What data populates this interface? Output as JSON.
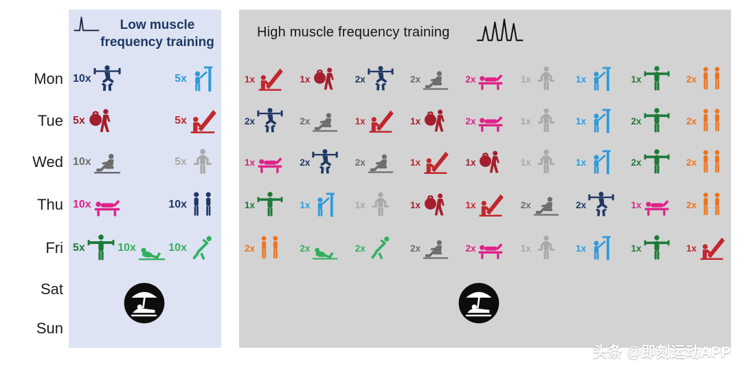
{
  "days": [
    "Mon",
    "Tue",
    "Wed",
    "Thu",
    "Fri",
    "Sat",
    "Sun"
  ],
  "watermark": "头条 @即刻运动APP",
  "palette": {
    "navy": "#1f3864",
    "lightblue": "#2f9cd9",
    "darkred": "#a51e2d",
    "red": "#c1272d",
    "gray": "#6d6d6d",
    "lightgray": "#a9a9a9",
    "pink": "#e0218a",
    "green": "#1d7a3a",
    "midgreen": "#32b05f",
    "orange": "#ed7420",
    "low_title": "#1f3864",
    "high_title": "#161616",
    "low_panel_bg": "#dde3f3",
    "high_panel_bg": "#d3d3d3"
  },
  "low_panel": {
    "title_line1": "Low muscle",
    "title_line2": "frequency training",
    "waveform_icon": "single-spike-waveform",
    "rest_icon": "beach-rest",
    "rows": [
      {
        "day": "Mon",
        "items": [
          {
            "count": "10x",
            "icon": "barbell-squat",
            "color": "navy"
          },
          {
            "count": "5x",
            "icon": "cable-tower",
            "color": "lightblue"
          }
        ]
      },
      {
        "day": "Tue",
        "items": [
          {
            "count": "5x",
            "icon": "kettlebell-squat",
            "color": "darkred"
          },
          {
            "count": "5x",
            "icon": "leg-press",
            "color": "red"
          }
        ]
      },
      {
        "day": "Wed",
        "items": [
          {
            "count": "10x",
            "icon": "rowing-machine",
            "color": "gray"
          },
          {
            "count": "5x",
            "icon": "dumbbell-standing",
            "color": "lightgray"
          }
        ]
      },
      {
        "day": "Thu",
        "items": [
          {
            "count": "10x",
            "icon": "bench-machine",
            "color": "pink"
          },
          {
            "count": "10x",
            "icon": "standing-pair",
            "color": "navy"
          }
        ]
      },
      {
        "day": "Fri",
        "items": [
          {
            "count": "5x",
            "icon": "lateral-raise",
            "color": "green"
          },
          {
            "count": "10x",
            "icon": "situp",
            "color": "midgreen"
          },
          {
            "count": "10x",
            "icon": "stretch",
            "color": "midgreen"
          }
        ]
      }
    ]
  },
  "high_panel": {
    "title": "High muscle frequency training",
    "waveform_icon": "multi-spike-waveform",
    "rest_icon": "beach-rest",
    "rows": [
      {
        "day": "Mon",
        "items": [
          {
            "count": "1x",
            "icon": "leg-press",
            "color": "red"
          },
          {
            "count": "1x",
            "icon": "kettlebell-squat",
            "color": "darkred"
          },
          {
            "count": "2x",
            "icon": "barbell-squat",
            "color": "navy"
          },
          {
            "count": "2x",
            "icon": "rowing-machine",
            "color": "gray"
          },
          {
            "count": "2x",
            "icon": "bench-machine",
            "color": "pink"
          },
          {
            "count": "1x",
            "icon": "dumbbell-standing",
            "color": "lightgray"
          },
          {
            "count": "1x",
            "icon": "cable-tower",
            "color": "lightblue"
          },
          {
            "count": "1x",
            "icon": "lateral-raise",
            "color": "green"
          },
          {
            "count": "2x",
            "icon": "standing-pair",
            "color": "orange"
          }
        ]
      },
      {
        "day": "Tue",
        "items": [
          {
            "count": "2x",
            "icon": "barbell-squat",
            "color": "navy"
          },
          {
            "count": "2x",
            "icon": "rowing-machine",
            "color": "gray"
          },
          {
            "count": "1x",
            "icon": "leg-press",
            "color": "red"
          },
          {
            "count": "1x",
            "icon": "kettlebell-squat",
            "color": "darkred"
          },
          {
            "count": "2x",
            "icon": "bench-machine",
            "color": "pink"
          },
          {
            "count": "1x",
            "icon": "dumbbell-standing",
            "color": "lightgray"
          },
          {
            "count": "1x",
            "icon": "cable-tower",
            "color": "lightblue"
          },
          {
            "count": "2x",
            "icon": "lateral-raise",
            "color": "green"
          },
          {
            "count": "2x",
            "icon": "standing-pair",
            "color": "orange"
          }
        ]
      },
      {
        "day": "Wed",
        "items": [
          {
            "count": "1x",
            "icon": "bench-machine",
            "color": "pink"
          },
          {
            "count": "2x",
            "icon": "barbell-squat",
            "color": "navy"
          },
          {
            "count": "2x",
            "icon": "rowing-machine",
            "color": "gray"
          },
          {
            "count": "1x",
            "icon": "leg-press",
            "color": "red"
          },
          {
            "count": "1x",
            "icon": "kettlebell-squat",
            "color": "darkred"
          },
          {
            "count": "1x",
            "icon": "dumbbell-standing",
            "color": "lightgray"
          },
          {
            "count": "1x",
            "icon": "cable-tower",
            "color": "lightblue"
          },
          {
            "count": "2x",
            "icon": "lateral-raise",
            "color": "green"
          },
          {
            "count": "2x",
            "icon": "standing-pair",
            "color": "orange"
          }
        ]
      },
      {
        "day": "Thu",
        "items": [
          {
            "count": "1x",
            "icon": "lateral-raise",
            "color": "green"
          },
          {
            "count": "1x",
            "icon": "cable-tower",
            "color": "lightblue"
          },
          {
            "count": "1x",
            "icon": "dumbbell-standing",
            "color": "lightgray"
          },
          {
            "count": "1x",
            "icon": "kettlebell-squat",
            "color": "darkred"
          },
          {
            "count": "1x",
            "icon": "leg-press",
            "color": "red"
          },
          {
            "count": "2x",
            "icon": "rowing-machine",
            "color": "gray"
          },
          {
            "count": "2x",
            "icon": "barbell-squat",
            "color": "navy"
          },
          {
            "count": "1x",
            "icon": "bench-machine",
            "color": "pink"
          },
          {
            "count": "2x",
            "icon": "standing-pair",
            "color": "orange"
          }
        ]
      },
      {
        "day": "Fri",
        "items": [
          {
            "count": "2x",
            "icon": "standing-pair",
            "color": "orange"
          },
          {
            "count": "2x",
            "icon": "situp",
            "color": "midgreen"
          },
          {
            "count": "2x",
            "icon": "stretch",
            "color": "midgreen"
          },
          {
            "count": "2x",
            "icon": "rowing-machine",
            "color": "gray"
          },
          {
            "count": "2x",
            "icon": "bench-machine",
            "color": "pink"
          },
          {
            "count": "1x",
            "icon": "dumbbell-standing",
            "color": "lightgray"
          },
          {
            "count": "1x",
            "icon": "cable-tower",
            "color": "lightblue"
          },
          {
            "count": "1x",
            "icon": "lateral-raise",
            "color": "green"
          },
          {
            "count": "1x",
            "icon": "leg-press",
            "color": "red"
          }
        ]
      }
    ]
  }
}
